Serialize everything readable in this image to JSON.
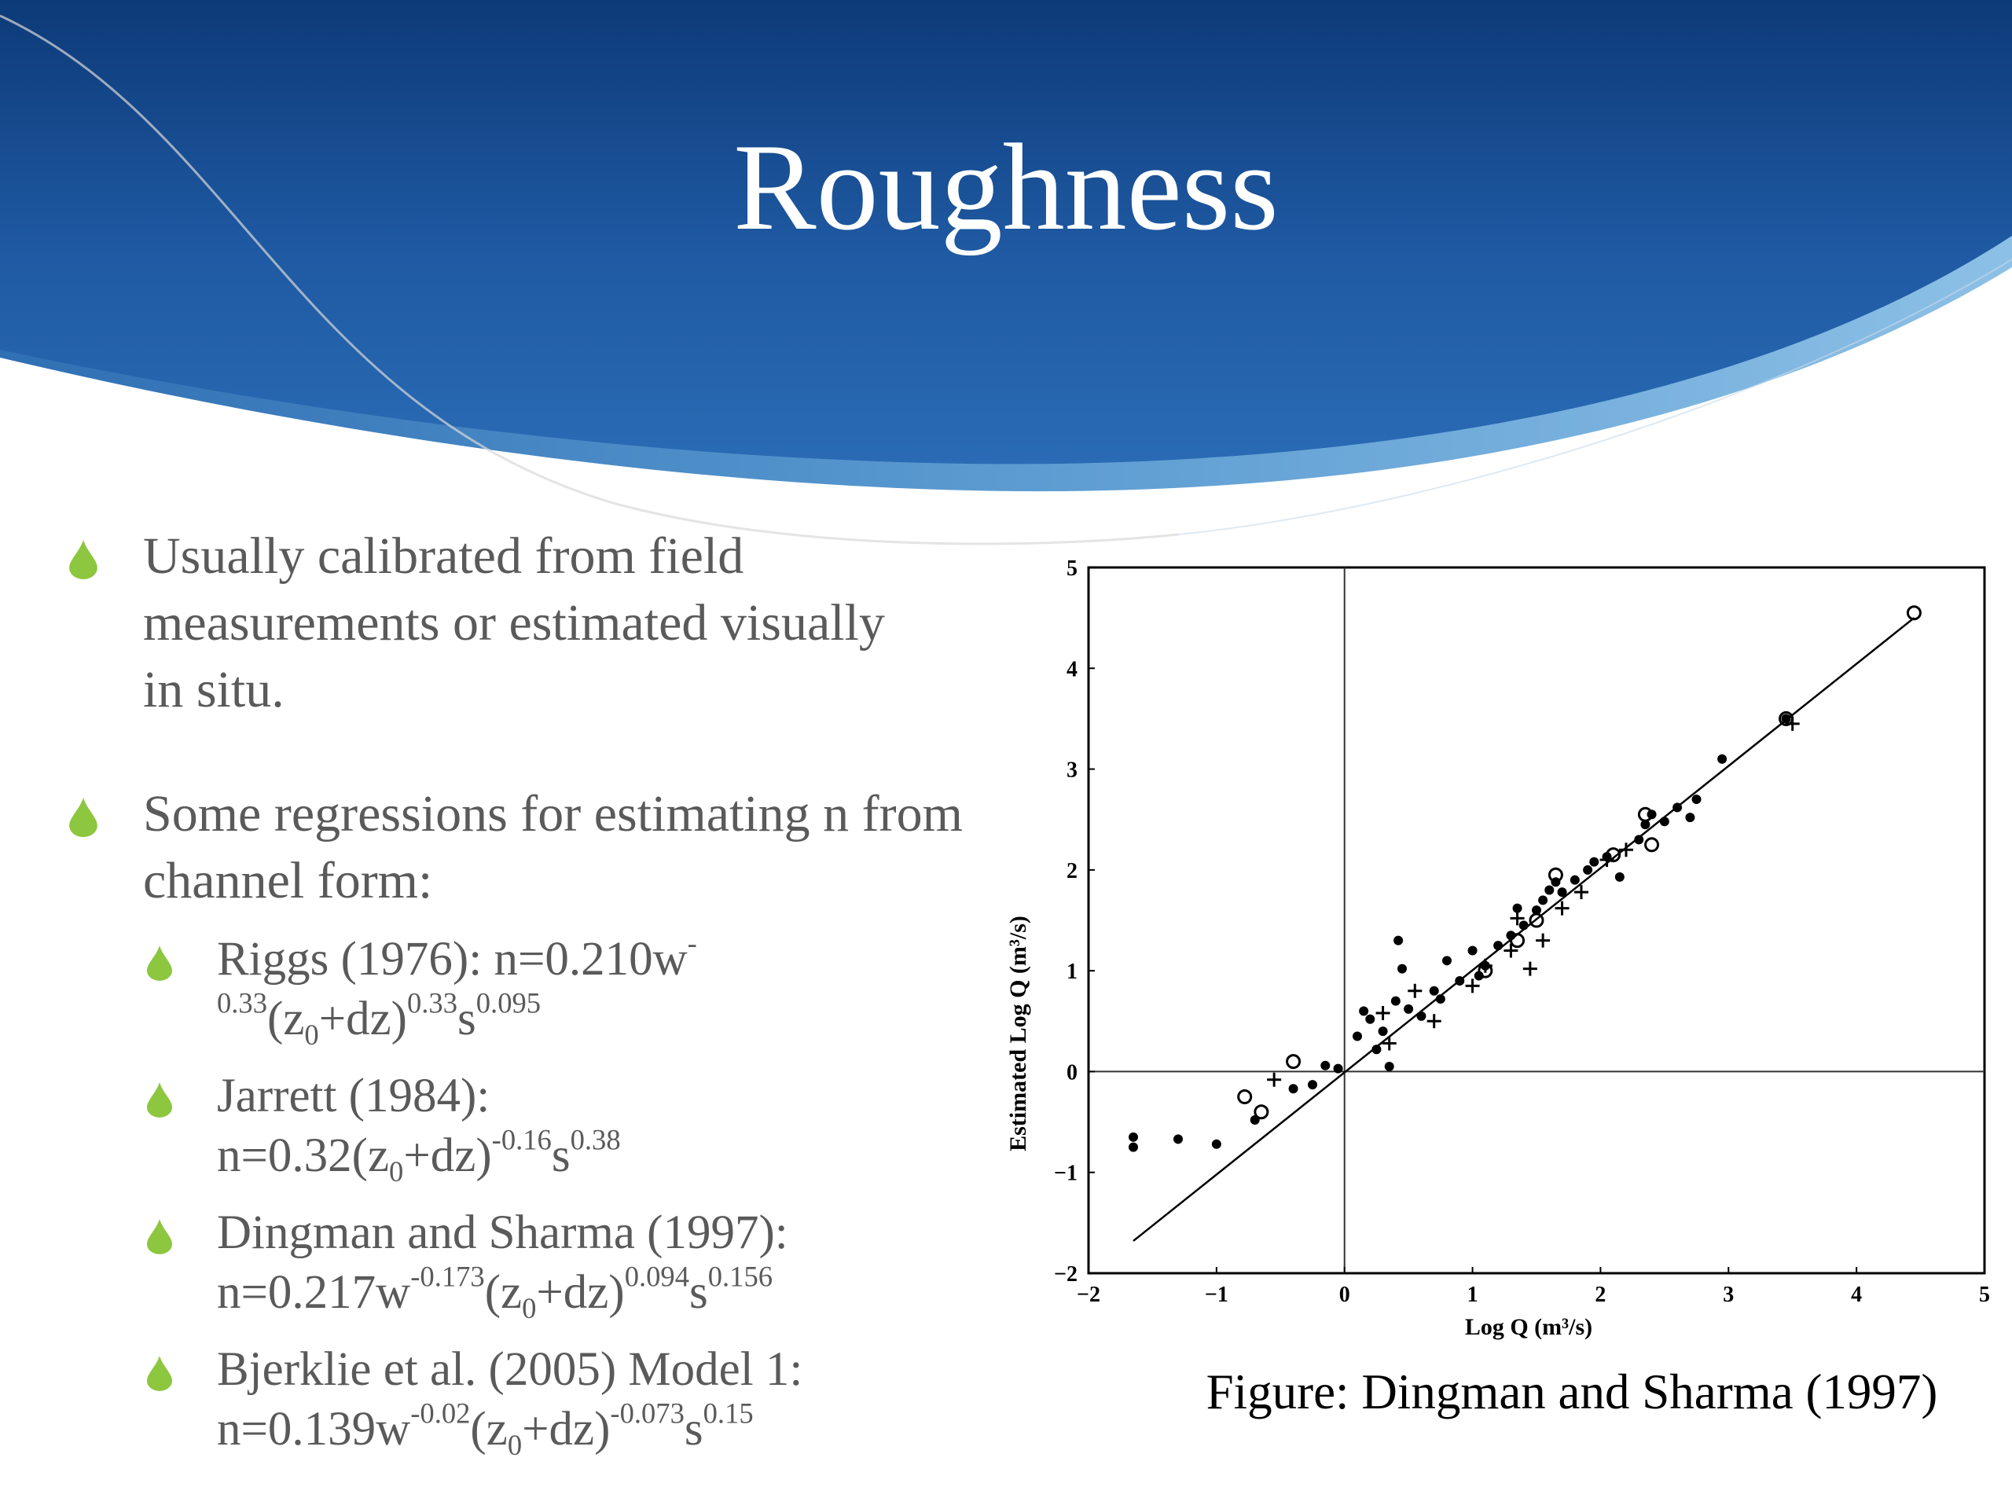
{
  "slide": {
    "title": "Roughness",
    "caption": "Figure: Dingman and Sharma (1997)",
    "bullets": [
      {
        "text": "Usually calibrated from field measurements or estimated visually in situ."
      },
      {
        "text": "Some regressions for estimating n from channel form:"
      }
    ],
    "sub_bullets": [
      {
        "prefix": "Riggs (1976): n=0.210w",
        "e1": "-0.33",
        "p2": "(z",
        "s1": "0",
        "p3": "+dz)",
        "e2": "0.33",
        "p4": "s",
        "e3": "0.095"
      },
      {
        "prefix": "Jarrett (1984): n=0.32(z",
        "s1": "0",
        "p2": "+dz)",
        "e1": "-0.16",
        "p3": "s",
        "e2": "0.38"
      },
      {
        "label": "Dingman and Sharma (1997):",
        "prefix": "n=0.217w",
        "e1": "-0.173",
        "p2": "(z",
        "s1": "0",
        "p3": "+dz)",
        "e2": "0.094",
        "p4": "s",
        "e3": "0.156"
      },
      {
        "label": "Bjerklie et al. (2005) Model 1:",
        "prefix": "n=0.139w",
        "e1": "-0.02",
        "p2": "(z",
        "s1": "0",
        "p3": "+dz)",
        "e2": "-0.073",
        "p4": "s",
        "e3": "0.15"
      }
    ]
  },
  "colors": {
    "banner_dark": "#0d3a78",
    "banner_mid": "#2a65ad",
    "banner_light": "#5b9bd1",
    "bullet_green": "#8dc63f",
    "text_gray": "#5a5a5a"
  },
  "chart_data": {
    "type": "scatter",
    "xlabel": "Log Q (m³/s)",
    "ylabel": "Estimated Log Q (m³/s)",
    "xlim": [
      -2,
      5
    ],
    "ylim": [
      -2,
      5
    ],
    "xticks": [
      "−2",
      "−1",
      "0",
      "1",
      "2",
      "3",
      "4",
      "5"
    ],
    "yticks": [
      "−2",
      "−1",
      "0",
      "1",
      "2",
      "3",
      "4",
      "5"
    ],
    "fit_line": [
      [
        -1.65,
        -1.68
      ],
      [
        4.45,
        4.5
      ]
    ],
    "series": [
      {
        "marker": "dot",
        "points": [
          [
            -1.65,
            -0.65
          ],
          [
            -1.65,
            -0.75
          ],
          [
            -1.3,
            -0.67
          ],
          [
            -1,
            -0.72
          ],
          [
            -0.7,
            -0.48
          ],
          [
            -0.4,
            -0.17
          ],
          [
            -0.25,
            -0.13
          ],
          [
            -0.15,
            0.06
          ],
          [
            -0.05,
            0.03
          ],
          [
            0.1,
            0.35
          ],
          [
            0.15,
            0.6
          ],
          [
            0.2,
            0.52
          ],
          [
            0.25,
            0.22
          ],
          [
            0.3,
            0.4
          ],
          [
            0.35,
            0.05
          ],
          [
            0.4,
            0.7
          ],
          [
            0.45,
            1.02
          ],
          [
            0.42,
            1.3
          ],
          [
            0.5,
            0.62
          ],
          [
            0.6,
            0.55
          ],
          [
            0.7,
            0.8
          ],
          [
            0.75,
            0.72
          ],
          [
            0.8,
            1.1
          ],
          [
            0.9,
            0.9
          ],
          [
            1,
            1.2
          ],
          [
            1.05,
            0.95
          ],
          [
            1.1,
            1.05
          ],
          [
            1.2,
            1.25
          ],
          [
            1.3,
            1.35
          ],
          [
            1.35,
            1.62
          ],
          [
            1.4,
            1.45
          ],
          [
            1.5,
            1.6
          ],
          [
            1.55,
            1.7
          ],
          [
            1.6,
            1.8
          ],
          [
            1.65,
            1.88
          ],
          [
            1.7,
            1.78
          ],
          [
            1.8,
            1.9
          ],
          [
            1.9,
            2
          ],
          [
            1.95,
            2.08
          ],
          [
            2.05,
            2.13
          ],
          [
            2.15,
            1.93
          ],
          [
            2.3,
            2.3
          ],
          [
            2.35,
            2.45
          ],
          [
            2.4,
            2.55
          ],
          [
            2.5,
            2.48
          ],
          [
            2.6,
            2.62
          ],
          [
            2.7,
            2.52
          ],
          [
            2.75,
            2.7
          ],
          [
            2.95,
            3.1
          ],
          [
            3.45,
            3.5
          ]
        ]
      },
      {
        "marker": "circle",
        "points": [
          [
            -0.4,
            0.1
          ],
          [
            -0.78,
            -0.25
          ],
          [
            -0.65,
            -0.4
          ],
          [
            1.1,
            1
          ],
          [
            1.35,
            1.3
          ],
          [
            1.5,
            1.5
          ],
          [
            1.65,
            1.95
          ],
          [
            2.1,
            2.15
          ],
          [
            2.35,
            2.55
          ],
          [
            2.4,
            2.25
          ],
          [
            3.45,
            3.5
          ],
          [
            4.45,
            4.55
          ]
        ]
      },
      {
        "marker": "plus",
        "points": [
          [
            -0.55,
            -0.08
          ],
          [
            0.35,
            0.28
          ],
          [
            0.3,
            0.58
          ],
          [
            0.55,
            0.8
          ],
          [
            0.7,
            0.5
          ],
          [
            1,
            0.85
          ],
          [
            1.1,
            1.05
          ],
          [
            1.3,
            1.2
          ],
          [
            1.35,
            1.52
          ],
          [
            1.45,
            1.02
          ],
          [
            1.55,
            1.3
          ],
          [
            1.7,
            1.62
          ],
          [
            1.85,
            1.78
          ],
          [
            2.05,
            2.1
          ],
          [
            2.2,
            2.2
          ],
          [
            3.5,
            3.45
          ]
        ]
      }
    ]
  }
}
